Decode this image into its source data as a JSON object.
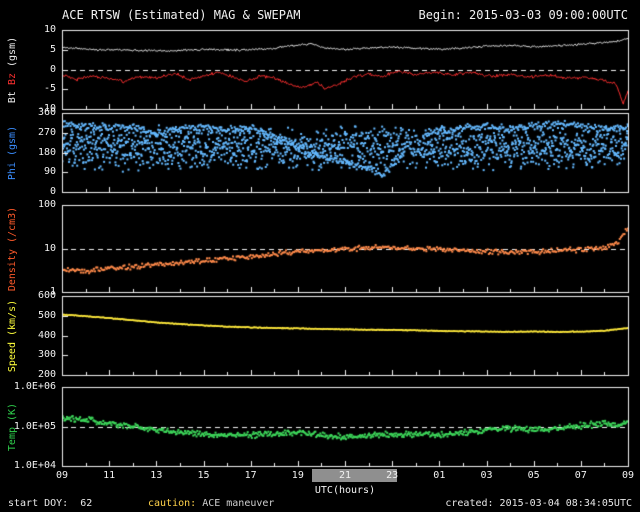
{
  "header": {
    "title": "ACE RTSW (Estimated) MAG & SWEPAM",
    "begin": "Begin: 2015-03-03 09:00:00UTC"
  },
  "footer": {
    "start_doy": "start DOY:  62",
    "caution_label": "caution: ",
    "caution_text": "ACE maneuver",
    "created": "created: 2015-03-04 08:34:05UTC"
  },
  "colors": {
    "background": "#000000",
    "axis": "#f2f2f2",
    "bt": "#ededed",
    "bz": "#ff3030",
    "phi": "#64b9ff",
    "density": "#ff8a4a",
    "speed": "#ffe93c",
    "temp": "#3dd65a",
    "maneuver_band": "#8f8f8f"
  },
  "chart_data": {
    "type": "line",
    "title": "ACE RTSW (Estimated) MAG & SWEPAM",
    "begin_label": "Begin: 2015-03-03 09:00:00UTC",
    "x": {
      "label": "UTC(hours)",
      "start_hour": 9,
      "end_hour": 33,
      "ticks": [
        9,
        11,
        13,
        15,
        17,
        19,
        21,
        23,
        25,
        27,
        29,
        31,
        33
      ],
      "tick_labels": [
        "09",
        "11",
        "13",
        "15",
        "17",
        "19",
        "21",
        "23",
        "01",
        "03",
        "05",
        "07",
        "09"
      ],
      "maneuver_band": {
        "from": 19.6,
        "to": 23.2
      }
    },
    "panels": [
      {
        "name": "mag",
        "scale": "linear",
        "ylim": [
          -10,
          10
        ],
        "dashed_y": 0,
        "yticks": [
          {
            "v": 10,
            "label": "10"
          },
          {
            "v": 5,
            "label": "5"
          },
          {
            "v": 0,
            "label": "0"
          },
          {
            "v": -5,
            "label": "-5"
          },
          {
            "v": -10,
            "label": "-10"
          }
        ],
        "ylabel_parts": [
          {
            "text": "Bt ",
            "color": "#ededed"
          },
          {
            "text": "Bz ",
            "color": "#ff3030"
          },
          {
            "text": "(gsm)",
            "color": "#ededed"
          }
        ],
        "series": [
          {
            "name": "Bt",
            "color": "#ededed",
            "mode": "line",
            "noise": 0.3,
            "step": 0.04,
            "points": [
              [
                9,
                5.6
              ],
              [
                10.5,
                5.0
              ],
              [
                12,
                4.9
              ],
              [
                13.5,
                4.7
              ],
              [
                15,
                5.1
              ],
              [
                16.5,
                4.9
              ],
              [
                18,
                5.4
              ],
              [
                19,
                6.2
              ],
              [
                19.6,
                6.6
              ],
              [
                20.2,
                5.4
              ],
              [
                21,
                5.1
              ],
              [
                22,
                5.4
              ],
              [
                23,
                5.7
              ],
              [
                24,
                5.4
              ],
              [
                25,
                5.1
              ],
              [
                26,
                5.4
              ],
              [
                27,
                5.9
              ],
              [
                28,
                6.1
              ],
              [
                29,
                5.7
              ],
              [
                30,
                6.0
              ],
              [
                31,
                6.4
              ],
              [
                32,
                6.8
              ],
              [
                32.6,
                7.2
              ],
              [
                33,
                7.8
              ]
            ]
          },
          {
            "name": "Bz",
            "color": "#ff3030",
            "mode": "line",
            "noise": 0.45,
            "step": 0.04,
            "points": [
              [
                9,
                -1.2
              ],
              [
                9.6,
                -2.6
              ],
              [
                10.2,
                -1.6
              ],
              [
                11,
                -2.2
              ],
              [
                11.6,
                -3.1
              ],
              [
                12.2,
                -1.8
              ],
              [
                13,
                -2.2
              ],
              [
                13.8,
                -1.0
              ],
              [
                14.4,
                -2.6
              ],
              [
                15,
                -1.8
              ],
              [
                15.6,
                -0.6
              ],
              [
                16.2,
                -1.8
              ],
              [
                16.8,
                -3.0
              ],
              [
                17.4,
                -1.6
              ],
              [
                18,
                -2.2
              ],
              [
                18.6,
                -3.6
              ],
              [
                19.2,
                -4.6
              ],
              [
                19.8,
                -3.2
              ],
              [
                20.2,
                -4.9
              ],
              [
                20.8,
                -3.4
              ],
              [
                21.4,
                -1.8
              ],
              [
                22,
                -1.2
              ],
              [
                22.6,
                -1.8
              ],
              [
                23.2,
                -0.4
              ],
              [
                24,
                -1.2
              ],
              [
                24.8,
                -0.6
              ],
              [
                25.6,
                -1.4
              ],
              [
                26.4,
                -0.8
              ],
              [
                27.2,
                -1.8
              ],
              [
                28,
                -1.2
              ],
              [
                28.8,
                -2.0
              ],
              [
                29.6,
                -1.4
              ],
              [
                30.4,
                -2.2
              ],
              [
                31.2,
                -2.0
              ],
              [
                32,
                -2.8
              ],
              [
                32.5,
                -3.6
              ],
              [
                32.8,
                -8.6
              ],
              [
                33,
                -5.5
              ]
            ]
          }
        ]
      },
      {
        "name": "phi",
        "scale": "linear",
        "ylim": [
          0,
          360
        ],
        "dashed_y": null,
        "yticks": [
          {
            "v": 360,
            "label": "360"
          },
          {
            "v": 270,
            "label": "270"
          },
          {
            "v": 180,
            "label": "180"
          },
          {
            "v": 90,
            "label": "90"
          },
          {
            "v": 0,
            "label": "0"
          }
        ],
        "ylabel_parts": [
          {
            "text": "Phi (gsm)",
            "color": "#3b8eff"
          }
        ],
        "series": [
          {
            "name": "Phi",
            "color": "#64b9ff",
            "mode": "dots",
            "noise": 20,
            "step": 0.04,
            "size": 2,
            "gaps": [
              [
                23.5,
                24.3
              ]
            ],
            "points": [
              [
                9,
                315
              ],
              [
                10,
                302
              ],
              [
                11,
                290
              ],
              [
                12,
                296
              ],
              [
                13,
                266
              ],
              [
                14,
                286
              ],
              [
                15,
                296
              ],
              [
                16,
                280
              ],
              [
                17,
                292
              ],
              [
                17.8,
                262
              ],
              [
                18.6,
                228
              ],
              [
                19.4,
                185
              ],
              [
                20.2,
                152
              ],
              [
                21,
                140
              ],
              [
                21.8,
                112
              ],
              [
                22.6,
                82
              ],
              [
                23.2,
                140
              ],
              [
                24,
                230
              ],
              [
                24.8,
                276
              ],
              [
                26,
                292
              ],
              [
                27,
                302
              ],
              [
                28,
                286
              ],
              [
                29,
                300
              ],
              [
                30,
                310
              ],
              [
                31,
                296
              ],
              [
                32,
                286
              ],
              [
                33,
                292
              ]
            ]
          },
          {
            "name": "Phi-disturbed",
            "color": "#64b9ff",
            "mode": "dots",
            "noise": 110,
            "step": 0.015,
            "size": 2,
            "points": [
              [
                32.7,
                200
              ],
              [
                33,
                230
              ]
            ]
          }
        ]
      },
      {
        "name": "density",
        "scale": "log",
        "ylim": [
          1,
          100
        ],
        "dashed_y": 10,
        "yticks": [
          {
            "v": 100,
            "label": "100"
          },
          {
            "v": 10,
            "label": "10"
          },
          {
            "v": 1,
            "label": "1"
          }
        ],
        "ylabel_parts": [
          {
            "text": "Density (/cm3)",
            "color": "#ff5a2a"
          }
        ],
        "series": [
          {
            "name": "Density",
            "color": "#ff8a4a",
            "mode": "dots",
            "noise": 0.07,
            "step": 0.05,
            "size": 2,
            "points": [
              [
                9,
                3.2
              ],
              [
                10,
                3.0
              ],
              [
                11,
                3.4
              ],
              [
                12,
                3.8
              ],
              [
                13,
                4.2
              ],
              [
                14,
                4.7
              ],
              [
                15,
                5.2
              ],
              [
                16,
                5.8
              ],
              [
                17,
                6.3
              ],
              [
                18,
                7.2
              ],
              [
                19,
                8.6
              ],
              [
                20,
                9.2
              ],
              [
                21,
                9.8
              ],
              [
                22,
                10.2
              ],
              [
                23,
                10.4
              ],
              [
                24,
                10.0
              ],
              [
                25,
                9.4
              ],
              [
                26,
                9.0
              ],
              [
                27,
                8.4
              ],
              [
                28,
                8.0
              ],
              [
                29,
                8.4
              ],
              [
                30,
                8.8
              ],
              [
                31,
                9.4
              ],
              [
                32,
                10.2
              ],
              [
                32.6,
                14
              ],
              [
                33,
                28
              ]
            ]
          }
        ]
      },
      {
        "name": "speed",
        "scale": "linear",
        "ylim": [
          200,
          600
        ],
        "dashed_y": null,
        "yticks": [
          {
            "v": 600,
            "label": "600"
          },
          {
            "v": 500,
            "label": "500"
          },
          {
            "v": 400,
            "label": "400"
          },
          {
            "v": 300,
            "label": "300"
          },
          {
            "v": 200,
            "label": "200"
          }
        ],
        "ylabel_parts": [
          {
            "text": "Speed (km/s)",
            "color": "#ffff3c"
          }
        ],
        "series": [
          {
            "name": "Speed",
            "color": "#ffe93c",
            "mode": "dots",
            "noise": 2.5,
            "step": 0.025,
            "size": 1.5,
            "points": [
              [
                9,
                506
              ],
              [
                10,
                498
              ],
              [
                11,
                488
              ],
              [
                12,
                477
              ],
              [
                13,
                466
              ],
              [
                14,
                458
              ],
              [
                15,
                451
              ],
              [
                16,
                445
              ],
              [
                17,
                441
              ],
              [
                18,
                438
              ],
              [
                19,
                436
              ],
              [
                20,
                433
              ],
              [
                21,
                431
              ],
              [
                22,
                429
              ],
              [
                23,
                428
              ],
              [
                24,
                426
              ],
              [
                25,
                423
              ],
              [
                26,
                421
              ],
              [
                27,
                420
              ],
              [
                28,
                419
              ],
              [
                29,
                420
              ],
              [
                30,
                418
              ],
              [
                31,
                420
              ],
              [
                32,
                424
              ],
              [
                33,
                438
              ]
            ]
          }
        ]
      },
      {
        "name": "temp",
        "scale": "log",
        "ylim": [
          10000,
          1000000
        ],
        "dashed_y": 100000,
        "yticks": [
          {
            "v": 1000000,
            "label": "1.0E+06"
          },
          {
            "v": 100000,
            "label": "1.0E+05"
          },
          {
            "v": 10000,
            "label": "1.0E+04"
          }
        ],
        "ylabel_parts": [
          {
            "text": "Temp (K)",
            "color": "#2fd04c"
          }
        ],
        "series": [
          {
            "name": "Temp",
            "color": "#3dd65a",
            "mode": "dots",
            "noise": 0.09,
            "step": 0.035,
            "size": 2,
            "points": [
              [
                9,
                170000
              ],
              [
                10,
                145000
              ],
              [
                11,
                120000
              ],
              [
                12,
                100000
              ],
              [
                13,
                82000
              ],
              [
                14,
                70000
              ],
              [
                15,
                64000
              ],
              [
                16,
                60000
              ],
              [
                17,
                60000
              ],
              [
                18,
                66000
              ],
              [
                19,
                72000
              ],
              [
                20,
                60000
              ],
              [
                21,
                54000
              ],
              [
                22,
                60000
              ],
              [
                23,
                62000
              ],
              [
                24,
                66000
              ],
              [
                25,
                60000
              ],
              [
                26,
                70000
              ],
              [
                27,
                80000
              ],
              [
                28,
                90000
              ],
              [
                29,
                82000
              ],
              [
                30,
                90000
              ],
              [
                31,
                105000
              ],
              [
                32,
                120000
              ],
              [
                32.6,
                100000
              ],
              [
                33,
                140000
              ]
            ]
          }
        ]
      }
    ]
  }
}
